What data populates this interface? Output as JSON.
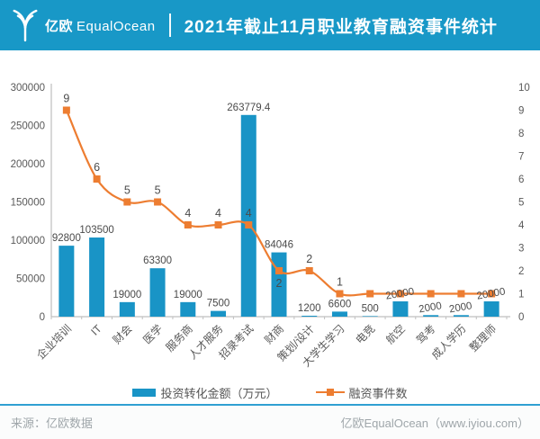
{
  "header": {
    "logo_cn": "亿欧",
    "logo_en": "EqualOcean",
    "title": "2021年截止11月职业教育融资事件统计"
  },
  "chart_data": {
    "type": "bar",
    "subtype": "combo-bar-line-dual-axis",
    "title": "2021年截止11月职业教育融资事件统计",
    "categories": [
      "企业培训",
      "IT",
      "财会",
      "医学",
      "服务商",
      "人才服务",
      "招录考试",
      "财商",
      "策划/设计",
      "大学生学习",
      "电竞",
      "航空",
      "驾考",
      "成人学历",
      "整理师"
    ],
    "series": [
      {
        "name": "投资转化金额（万元）",
        "type": "bar",
        "axis": "left",
        "color": "#1994C6",
        "values": [
          92800,
          103500,
          19000,
          63300,
          19000,
          7500,
          263779.4,
          84046,
          1200,
          6600,
          500,
          20000,
          2000,
          2000,
          20000
        ]
      },
      {
        "name": "融资事件数",
        "type": "line",
        "axis": "right",
        "color": "#ED7D31",
        "values": [
          9,
          6,
          5,
          5,
          4,
          4,
          4,
          2,
          2,
          1,
          1,
          1,
          1,
          1,
          1
        ]
      }
    ],
    "left_axis": {
      "min": 0,
      "max": 300000,
      "step": 50000,
      "ticks": [
        0,
        50000,
        100000,
        150000,
        200000,
        250000,
        300000
      ]
    },
    "right_axis": {
      "min": 0,
      "max": 10,
      "step": 1,
      "ticks": [
        0,
        1,
        2,
        3,
        4,
        5,
        6,
        7,
        8,
        9,
        10
      ]
    },
    "grid": false,
    "legend_position": "bottom",
    "line_labels_visible_count": 10,
    "line_label_below_indices": [
      7
    ],
    "rotated_bar_label_indices": [
      11,
      12,
      13,
      14
    ]
  },
  "footer": {
    "source": "来源：亿欧数据",
    "site": "亿欧EqualOcean（www.iyiou.com）"
  },
  "colors": {
    "header_bg": "#1898C7",
    "bar": "#1994C6",
    "line": "#ED7D31",
    "divider": "#2FA0D2",
    "axis": "#BFBFBF",
    "label_text": "#4A4A4A",
    "tick_text": "#595959",
    "footer_text": "#9FA6AA"
  }
}
